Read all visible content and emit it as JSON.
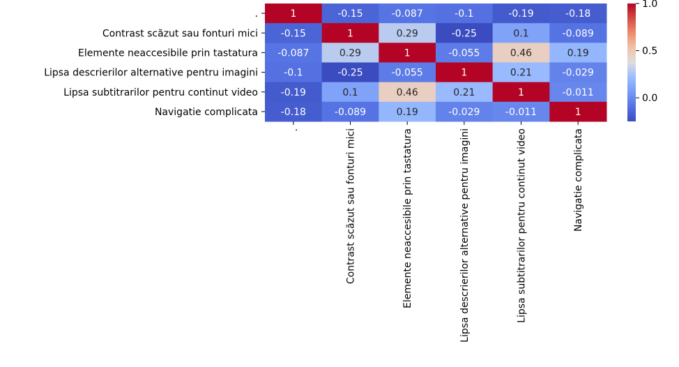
{
  "chart_data": {
    "type": "heatmap",
    "title": "",
    "xlabel": "",
    "ylabel": "",
    "row_labels": [
      ".",
      "Contrast scăzut sau fonturi mici",
      "Elemente neaccesibile prin tastatura",
      "Lipsa descrierilor alternative pentru imagini",
      "Lipsa subtitrarilor pentru continut video",
      "Navigatie complicata"
    ],
    "col_labels": [
      ".",
      "Contrast scăzut sau fonturi mici",
      "Elemente neaccesibile prin tastatura",
      "Lipsa descrierilor alternative pentru imagini",
      "Lipsa subtitrarilor pentru continut video",
      "Navigatie complicata"
    ],
    "values": [
      [
        1,
        -0.15,
        -0.087,
        -0.1,
        -0.19,
        -0.18
      ],
      [
        -0.15,
        1,
        0.29,
        -0.25,
        0.1,
        -0.089
      ],
      [
        -0.087,
        0.29,
        1,
        -0.055,
        0.46,
        0.19
      ],
      [
        -0.1,
        -0.25,
        -0.055,
        1,
        0.21,
        -0.029
      ],
      [
        -0.19,
        0.1,
        0.46,
        0.21,
        1,
        -0.011
      ],
      [
        -0.18,
        -0.089,
        0.19,
        -0.029,
        -0.011,
        1
      ]
    ],
    "annotations": [
      [
        "1",
        "-0.15",
        "-0.087",
        "-0.1",
        "-0.19",
        "-0.18"
      ],
      [
        "-0.15",
        "1",
        "0.29",
        "-0.25",
        "0.1",
        "-0.089"
      ],
      [
        "-0.087",
        "0.29",
        "1",
        "-0.055",
        "0.46",
        "0.19"
      ],
      [
        "-0.1",
        "-0.25",
        "-0.055",
        "1",
        "0.21",
        "-0.029"
      ],
      [
        "-0.19",
        "0.1",
        "0.46",
        "0.21",
        "1",
        "-0.011"
      ],
      [
        "-0.18",
        "-0.089",
        "0.19",
        "-0.029",
        "-0.011",
        "1"
      ]
    ],
    "colormap": "coolwarm",
    "vmin": -0.25,
    "vmax": 1,
    "colorbar_ticks": [
      {
        "value": 1.0,
        "label": "1.0"
      },
      {
        "value": 0.5,
        "label": "0.5"
      },
      {
        "value": 0.0,
        "label": "0.0"
      }
    ]
  }
}
